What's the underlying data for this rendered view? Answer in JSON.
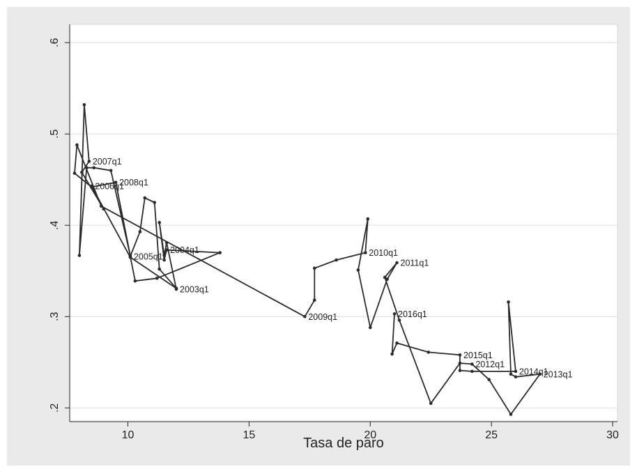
{
  "chart_data": {
    "type": "line",
    "title": "",
    "xlabel": "Tasa de paro",
    "ylabel": "",
    "xlim": [
      7.6,
      30.2
    ],
    "ylim": [
      0.185,
      0.62
    ],
    "x_ticks": [
      10,
      15,
      20,
      25,
      30
    ],
    "x_tick_labels": [
      "10",
      "15",
      "20",
      "25",
      "30"
    ],
    "y_ticks": [
      0.2,
      0.3,
      0.4,
      0.5,
      0.6
    ],
    "y_tick_labels": [
      ".2",
      ".3",
      ".4",
      ".5",
      ".6"
    ],
    "grid": "horizontal",
    "legend": "none",
    "colors": {
      "background": "#eaeaea",
      "plot_area": "#ffffff",
      "line": "#2b2b2b",
      "grid": "#e6e6e6"
    },
    "series": [
      {
        "points": [
          {
            "x": 12.0,
            "y": 0.33,
            "label": "2003q1"
          },
          {
            "x": 11.6,
            "y": 0.381
          },
          {
            "x": 11.5,
            "y": 0.367
          },
          {
            "x": 11.3,
            "y": 0.403
          },
          {
            "x": 11.5,
            "y": 0.362
          },
          {
            "x": 11.6,
            "y": 0.373,
            "label": "2004q1"
          },
          {
            "x": 13.8,
            "y": 0.37
          },
          {
            "x": 11.2,
            "y": 0.342
          },
          {
            "x": 10.3,
            "y": 0.339
          },
          {
            "x": 10.1,
            "y": 0.366,
            "label": "2005q1"
          },
          {
            "x": 10.5,
            "y": 0.393
          },
          {
            "x": 10.7,
            "y": 0.43
          },
          {
            "x": 11.1,
            "y": 0.425
          },
          {
            "x": 11.3,
            "y": 0.352
          },
          {
            "x": 12.0,
            "y": 0.331
          },
          {
            "x": 10.1,
            "y": 0.365
          },
          {
            "x": 8.5,
            "y": 0.443,
            "label": "2006q1"
          },
          {
            "x": 9.0,
            "y": 0.418
          },
          {
            "x": 8.1,
            "y": 0.458
          },
          {
            "x": 8.4,
            "y": 0.47,
            "label": "2007q1"
          },
          {
            "x": 8.2,
            "y": 0.532
          },
          {
            "x": 8.0,
            "y": 0.367
          },
          {
            "x": 8.3,
            "y": 0.463
          },
          {
            "x": 8.6,
            "y": 0.463
          },
          {
            "x": 9.3,
            "y": 0.46
          },
          {
            "x": 10.1,
            "y": 0.367
          },
          {
            "x": 9.5,
            "y": 0.447,
            "label": "2008q1"
          },
          {
            "x": 8.5,
            "y": 0.442
          },
          {
            "x": 7.8,
            "y": 0.457
          },
          {
            "x": 7.9,
            "y": 0.488
          },
          {
            "x": 8.9,
            "y": 0.421
          },
          {
            "x": 17.3,
            "y": 0.3,
            "label": "2009q1"
          },
          {
            "x": 17.7,
            "y": 0.318
          },
          {
            "x": 17.7,
            "y": 0.353
          },
          {
            "x": 18.6,
            "y": 0.362
          },
          {
            "x": 19.8,
            "y": 0.37,
            "label": "2010q1"
          },
          {
            "x": 19.9,
            "y": 0.407
          },
          {
            "x": 19.5,
            "y": 0.351
          },
          {
            "x": 20.0,
            "y": 0.288
          },
          {
            "x": 20.7,
            "y": 0.341
          },
          {
            "x": 21.1,
            "y": 0.359,
            "label": "2011q1"
          },
          {
            "x": 20.6,
            "y": 0.343
          },
          {
            "x": 21.2,
            "y": 0.296
          },
          {
            "x": 22.5,
            "y": 0.205
          },
          {
            "x": 23.7,
            "y": 0.249
          },
          {
            "x": 24.2,
            "y": 0.248,
            "label": "2012q1"
          },
          {
            "x": 24.9,
            "y": 0.231
          },
          {
            "x": 25.8,
            "y": 0.193
          },
          {
            "x": 27.0,
            "y": 0.237,
            "label": "2013q1"
          },
          {
            "x": 26.0,
            "y": 0.234
          },
          {
            "x": 25.8,
            "y": 0.237
          },
          {
            "x": 25.7,
            "y": 0.316
          },
          {
            "x": 26.0,
            "y": 0.24,
            "label": "2014q1"
          },
          {
            "x": 24.2,
            "y": 0.24
          },
          {
            "x": 23.7,
            "y": 0.241
          },
          {
            "x": 23.7,
            "y": 0.258,
            "label": "2015q1"
          },
          {
            "x": 22.4,
            "y": 0.261
          },
          {
            "x": 21.1,
            "y": 0.271
          },
          {
            "x": 20.9,
            "y": 0.259
          },
          {
            "x": 21.0,
            "y": 0.303,
            "label": "2016q1"
          }
        ]
      }
    ]
  }
}
